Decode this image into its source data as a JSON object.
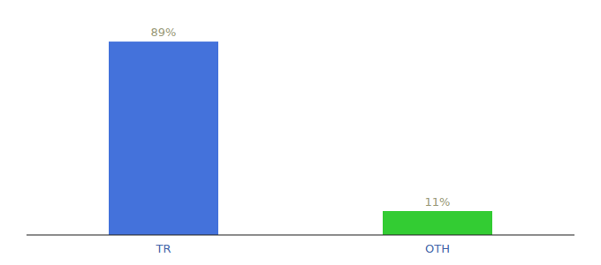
{
  "chart_data": {
    "type": "bar",
    "categories": [
      "TR",
      "OTH"
    ],
    "values": [
      89,
      11
    ],
    "colors": [
      "#4472db",
      "#33cc33"
    ],
    "value_labels": [
      "89%",
      "11%"
    ],
    "data_labels": true,
    "ylim": [
      0,
      100
    ],
    "tick_labels": "x"
  }
}
